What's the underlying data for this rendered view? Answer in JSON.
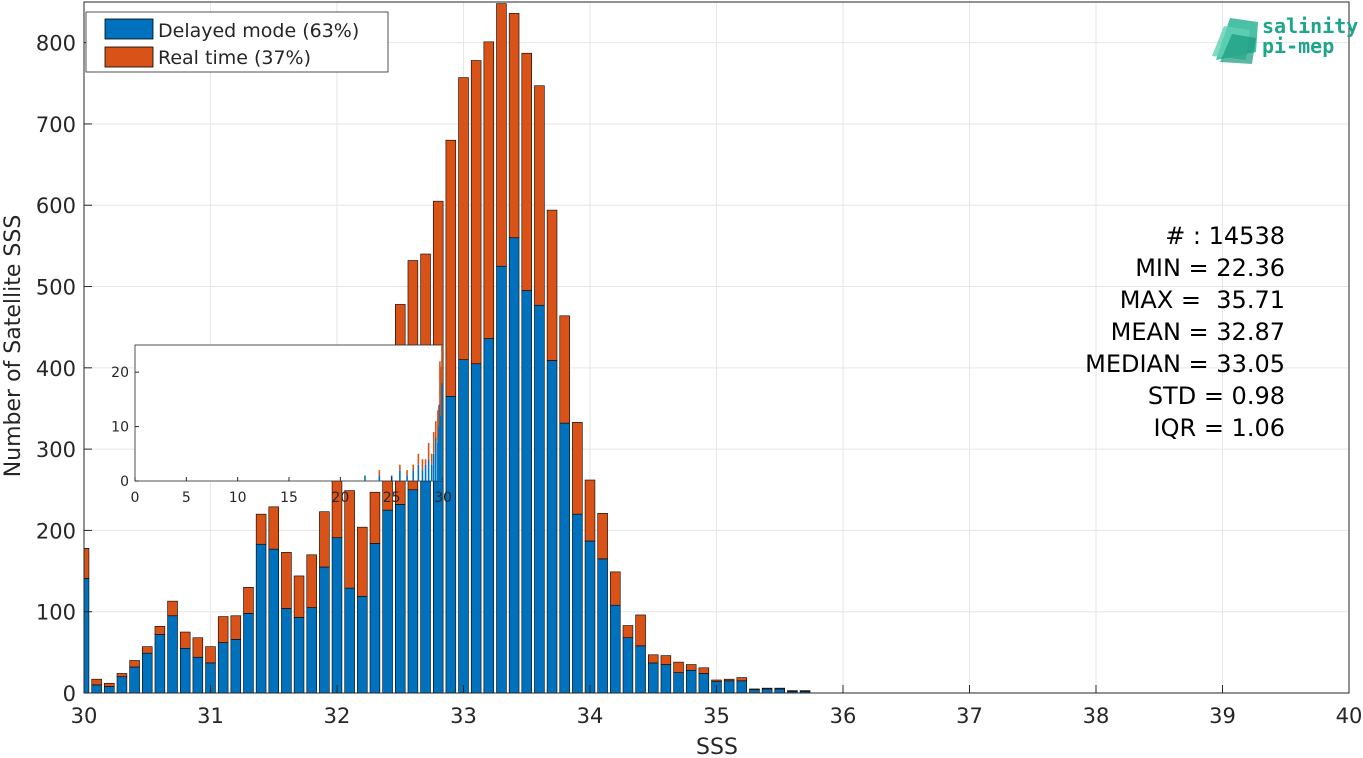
{
  "chart_data": [
    {
      "type": "bar",
      "stacked": true,
      "xlabel": "SSS",
      "ylabel": "Number of Satellite SSS",
      "xlim": [
        30,
        40
      ],
      "ylim": [
        0,
        850
      ],
      "xticks": [
        "30",
        "31",
        "32",
        "33",
        "34",
        "35",
        "36",
        "37",
        "38",
        "39",
        "40"
      ],
      "yticks": [
        "0",
        "100",
        "200",
        "300",
        "400",
        "500",
        "600",
        "700",
        "800"
      ],
      "grid": true,
      "legend_position": "top-left",
      "x": [
        30.0,
        30.1,
        30.2,
        30.3,
        30.4,
        30.5,
        30.6,
        30.7,
        30.8,
        30.9,
        31.0,
        31.1,
        31.2,
        31.3,
        31.4,
        31.5,
        31.6,
        31.7,
        31.8,
        31.9,
        32.0,
        32.1,
        32.2,
        32.3,
        32.4,
        32.5,
        32.6,
        32.7,
        32.8,
        32.9,
        33.0,
        33.1,
        33.2,
        33.3,
        33.4,
        33.5,
        33.6,
        33.7,
        33.8,
        33.9,
        34.0,
        34.1,
        34.2,
        34.3,
        34.4,
        34.5,
        34.6,
        34.7,
        34.8,
        34.9,
        35.0,
        35.1,
        35.2,
        35.3,
        35.4,
        35.5,
        35.6,
        35.7
      ],
      "series": [
        {
          "name": "Delayed mode (63%)",
          "color": "#0072BD",
          "values": [
            141,
            10,
            8,
            20,
            32,
            49,
            72,
            95,
            55,
            44,
            37,
            62,
            66,
            98,
            183,
            177,
            104,
            93,
            105,
            155,
            191,
            129,
            119,
            184,
            225,
            232,
            250,
            265,
            300,
            365,
            410,
            405,
            436,
            525,
            560,
            495,
            477,
            409,
            332,
            220,
            187,
            165,
            108,
            68,
            58,
            37,
            35,
            25,
            28,
            24,
            14,
            15,
            15,
            4,
            5,
            5,
            2,
            2
          ]
        },
        {
          "name": "Real time (37%)",
          "color": "#D95319",
          "values": [
            37,
            7,
            4,
            4,
            8,
            8,
            10,
            18,
            20,
            24,
            20,
            32,
            29,
            32,
            37,
            52,
            69,
            51,
            65,
            68,
            92,
            120,
            85,
            63,
            82,
            246,
            282,
            275,
            305,
            315,
            347,
            373,
            365,
            323,
            276,
            292,
            270,
            185,
            132,
            113,
            75,
            56,
            41,
            15,
            38,
            10,
            11,
            13,
            7,
            7,
            2,
            2,
            4,
            1,
            1,
            1,
            1,
            1
          ]
        }
      ]
    },
    {
      "type": "bar",
      "inset": true,
      "xlim": [
        0,
        30
      ],
      "ylim": [
        0,
        25
      ],
      "xticks": [
        "0",
        "5",
        "10",
        "15",
        "20",
        "25",
        "30"
      ],
      "yticks": [
        "0",
        "10",
        "20"
      ],
      "x": [
        22.4,
        23.8,
        25.0,
        25.8,
        26.5,
        27.1,
        27.6,
        28.0,
        28.3,
        28.6,
        28.9,
        29.1,
        29.3,
        29.5,
        29.6,
        29.7,
        29.8,
        29.9
      ],
      "series": [
        {
          "name": "",
          "color": "#0072BD",
          "values": [
            1,
            1,
            1,
            2,
            1,
            2,
            3,
            2,
            3,
            4,
            3,
            5,
            8,
            7,
            10,
            14,
            12,
            18
          ]
        },
        {
          "name": "",
          "color": "#D95319",
          "values": [
            0,
            1,
            0,
            1,
            1,
            1,
            2,
            2,
            1,
            3,
            2,
            4,
            3,
            6,
            4,
            8,
            9,
            7
          ]
        }
      ]
    }
  ],
  "stats": {
    "count": "# : 14538",
    "min": "MIN = 22.36",
    "max": "MAX =  35.71",
    "mean": "MEAN = 32.87",
    "median": "MEDIAN = 33.05",
    "std": "STD = 0.98",
    "iqr": "IQR = 1.06"
  },
  "logo": {
    "line1": "salinity",
    "line2": "pi-mep",
    "color": "#1fa58a"
  }
}
